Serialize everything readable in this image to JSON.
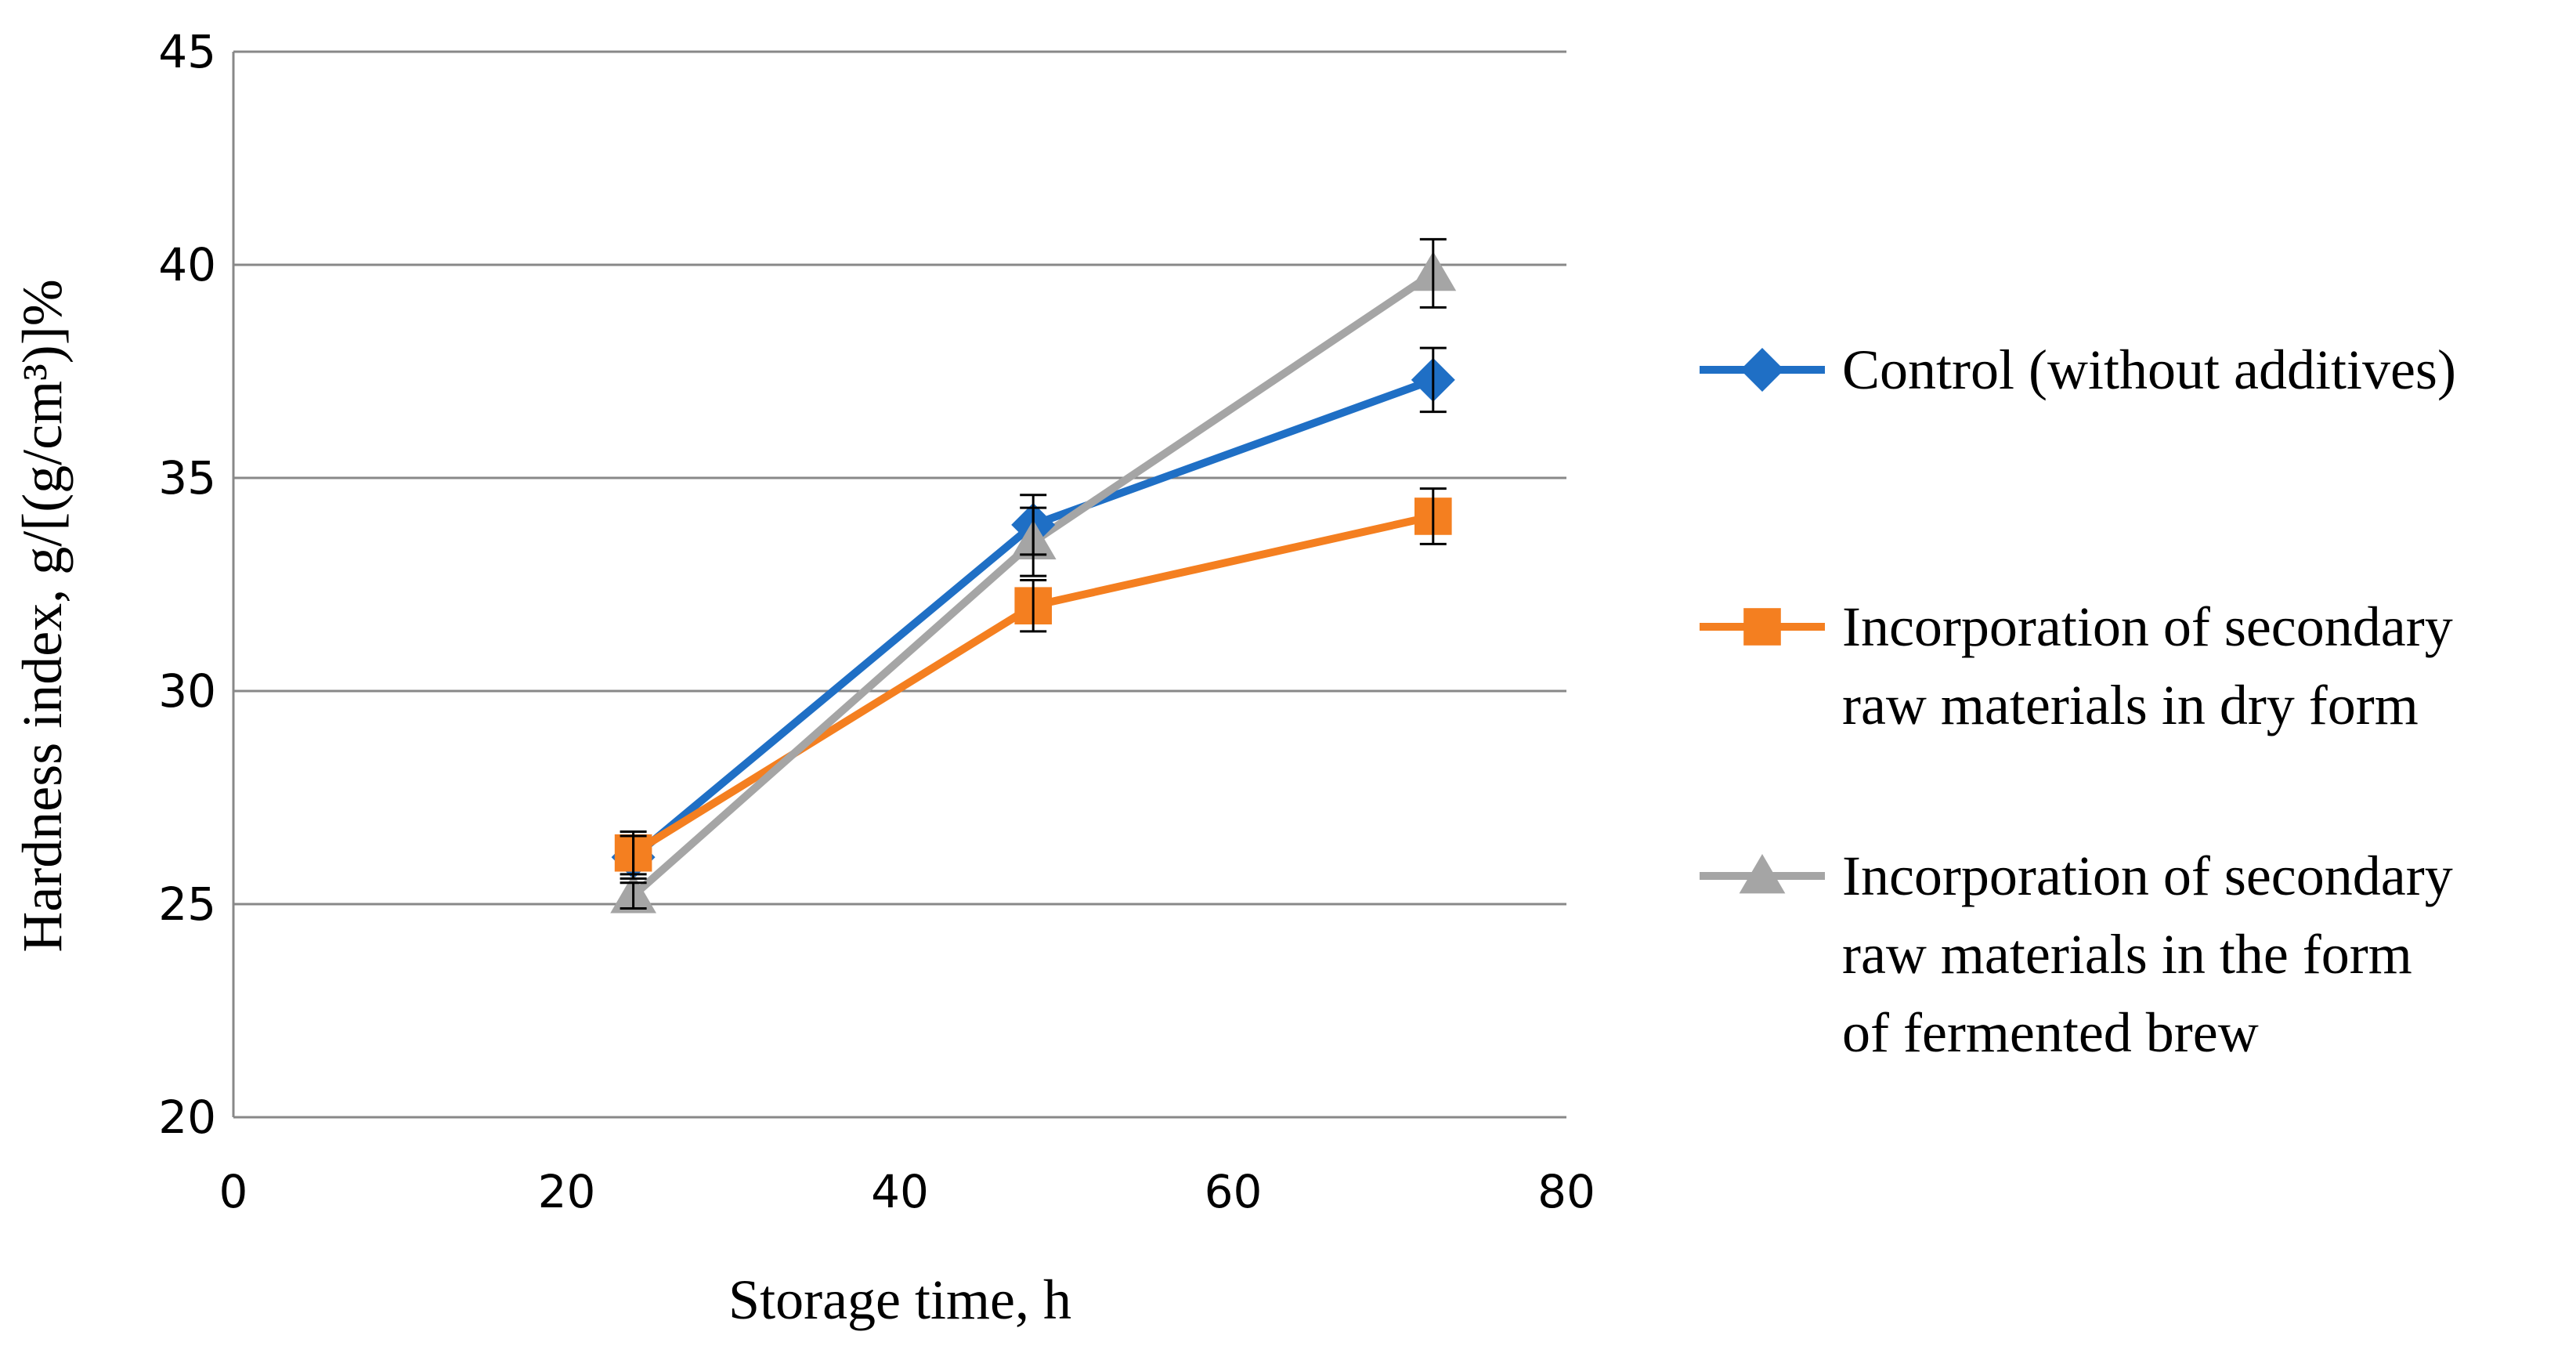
{
  "chart_data": {
    "type": "line",
    "xlabel": "Storage time, h",
    "ylabel": "Hardness index, g/[(g/cm³)]%",
    "xlim": [
      0,
      80
    ],
    "ylim": [
      20,
      45
    ],
    "x_ticks": [
      "0",
      "20",
      "40",
      "60",
      "80"
    ],
    "y_ticks": [
      "20",
      "25",
      "30",
      "35",
      "40",
      "45"
    ],
    "grid": "horizontal",
    "legend_position": "right",
    "x": [
      24,
      48,
      72
    ],
    "series": [
      {
        "name": "Control (without additives)",
        "legend_lines": [
          "Control (without additives)"
        ],
        "color": "#1f6fc5",
        "marker": "diamond",
        "values": [
          26.1,
          33.9,
          37.3
        ],
        "errors": [
          0.5,
          0.7,
          0.75
        ]
      },
      {
        "name": "Incorporation of secondary raw materials in dry form",
        "legend_lines": [
          "Incorporation of secondary",
          "raw materials in dry form"
        ],
        "color": "#f47f20",
        "marker": "square",
        "values": [
          26.2,
          32.0,
          34.1
        ],
        "errors": [
          0.5,
          0.6,
          0.65
        ]
      },
      {
        "name": "Incorporation of secondary raw materials in the form of fermented brew",
        "legend_lines": [
          "Incorporation of secondary",
          "raw materials in the form",
          "of fermented brew"
        ],
        "color": "#a5a5a5",
        "marker": "triangle",
        "values": [
          25.2,
          33.5,
          39.8
        ],
        "errors": [
          0.3,
          0.8,
          0.8
        ]
      }
    ]
  }
}
